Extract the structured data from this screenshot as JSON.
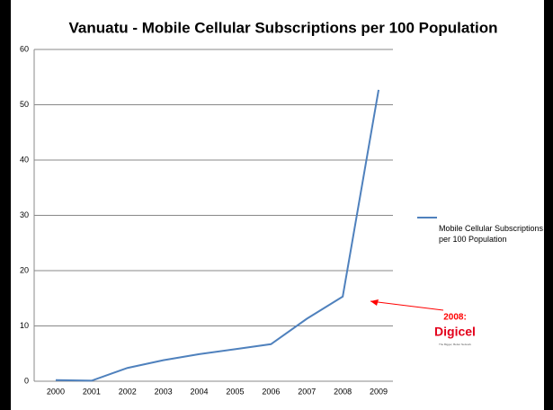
{
  "chart_data": {
    "type": "line",
    "title": "Vanuatu - Mobile Cellular Subscriptions per 100 Population",
    "categories": [
      "2000",
      "2001",
      "2002",
      "2003",
      "2004",
      "2005",
      "2006",
      "2007",
      "2008",
      "2009"
    ],
    "series": [
      {
        "name": "Mobile Cellular Subscriptions per 100 Population",
        "color": "#4f81bd",
        "values": [
          0.2,
          0.1,
          2.4,
          3.8,
          4.9,
          5.8,
          6.7,
          11.3,
          15.3,
          52.7
        ]
      }
    ],
    "ylim": [
      0,
      60
    ],
    "yticks": [
      0,
      10,
      20,
      30,
      40,
      50,
      60
    ],
    "grid": true,
    "legend": "right",
    "annotations": [
      {
        "text": "2008:"
      },
      {
        "text": "Digicel"
      },
      {
        "text": "The Bigger, Better Network"
      }
    ]
  }
}
